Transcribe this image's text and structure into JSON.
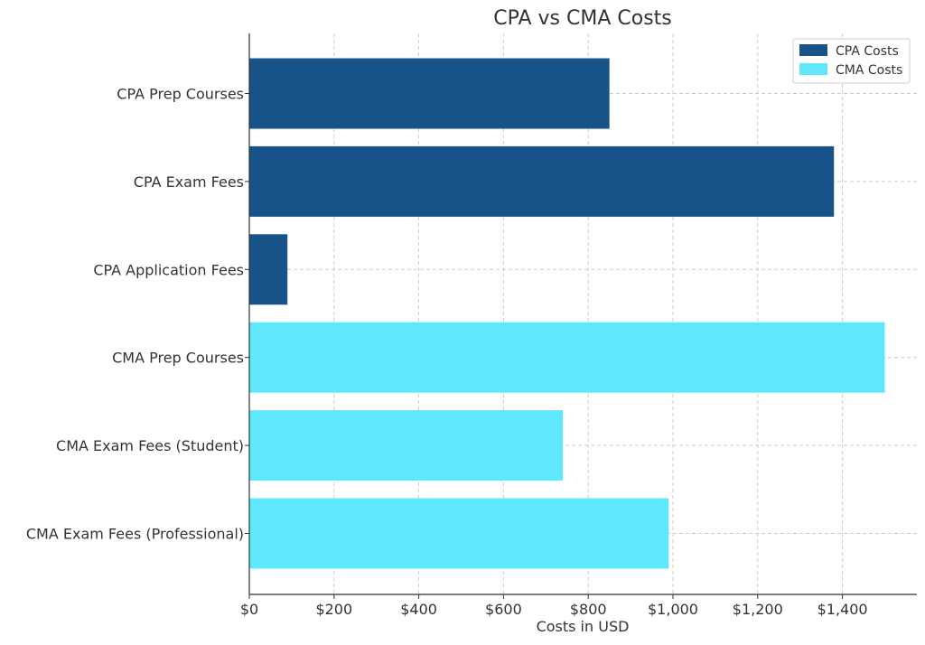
{
  "chart_data": {
    "type": "bar",
    "orientation": "horizontal",
    "title": "CPA vs CMA Costs",
    "xlabel": "Costs in USD",
    "ylabel": "",
    "xlim": [
      0,
      1575
    ],
    "xticks": [
      0,
      200,
      400,
      600,
      800,
      1000,
      1200,
      1400
    ],
    "xtick_labels": [
      "$0",
      "$200",
      "$400",
      "$600",
      "$800",
      "$1,000",
      "$1,200",
      "$1,400"
    ],
    "grid": true,
    "legend_position": "top-right",
    "categories": [
      "CPA Prep Courses",
      "CPA Exam Fees",
      "CPA Application Fees",
      "CMA Prep Courses",
      "CMA Exam Fees (Student)",
      "CMA Exam Fees (Professional)"
    ],
    "series": [
      {
        "name": "CPA Costs",
        "color": "#175388",
        "values": [
          850,
          1380,
          90,
          null,
          null,
          null
        ]
      },
      {
        "name": "CMA Costs",
        "color": "#5fe8fc",
        "values": [
          null,
          null,
          null,
          1500,
          740,
          990
        ]
      }
    ]
  }
}
